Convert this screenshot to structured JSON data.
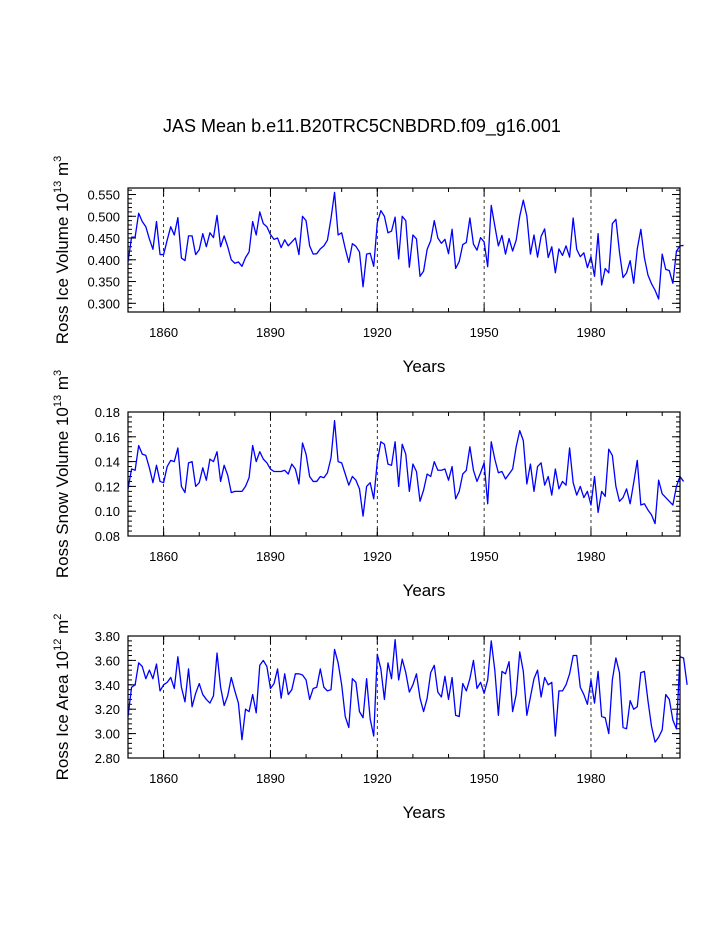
{
  "title": "JAS Mean b.e11.B20TRC5CNBDRD.f09_g16.001",
  "colors": {
    "series": "#0000ff",
    "axis": "#000000",
    "grid": "#000000"
  },
  "chart_data": [
    {
      "type": "line",
      "ylabel": {
        "text": "Ross Ice Volume 10",
        "exp1": "13",
        "mid": " m",
        "exp2": "3"
      },
      "xlabel": "Years",
      "xlim": [
        1850,
        2005
      ],
      "ylim": [
        0.28,
        0.565
      ],
      "yticks": [
        0.3,
        0.35,
        0.4,
        0.45,
        0.5,
        0.55
      ],
      "ytick_labels": [
        "0.300",
        "0.350",
        "0.400",
        "0.450",
        "0.500",
        "0.550"
      ],
      "xticks": [
        1860,
        1890,
        1920,
        1950,
        1980
      ],
      "xtick_labels": [
        "1860",
        "1890",
        "1920",
        "1950",
        "1980"
      ],
      "x_start": 1850,
      "values": [
        0.395,
        0.452,
        0.452,
        0.507,
        0.488,
        0.476,
        0.448,
        0.424,
        0.488,
        0.412,
        0.412,
        0.445,
        0.476,
        0.457,
        0.497,
        0.404,
        0.398,
        0.455,
        0.455,
        0.412,
        0.423,
        0.46,
        0.43,
        0.462,
        0.451,
        0.502,
        0.43,
        0.455,
        0.43,
        0.4,
        0.392,
        0.395,
        0.385,
        0.405,
        0.418,
        0.488,
        0.457,
        0.51,
        0.483,
        0.476,
        0.458,
        0.447,
        0.45,
        0.428,
        0.446,
        0.432,
        0.441,
        0.45,
        0.412,
        0.5,
        0.49,
        0.432,
        0.413,
        0.414,
        0.425,
        0.432,
        0.445,
        0.495,
        0.555,
        0.457,
        0.462,
        0.426,
        0.394,
        0.437,
        0.431,
        0.418,
        0.338,
        0.413,
        0.415,
        0.385,
        0.485,
        0.513,
        0.5,
        0.462,
        0.466,
        0.498,
        0.402,
        0.5,
        0.49,
        0.383,
        0.457,
        0.448,
        0.362,
        0.374,
        0.424,
        0.444,
        0.49,
        0.45,
        0.438,
        0.447,
        0.414,
        0.47,
        0.38,
        0.396,
        0.435,
        0.44,
        0.496,
        0.436,
        0.422,
        0.451,
        0.441,
        0.384,
        0.525,
        0.478,
        0.432,
        0.456,
        0.413,
        0.449,
        0.42,
        0.445,
        0.5,
        0.537,
        0.5,
        0.413,
        0.457,
        0.406,
        0.454,
        0.471,
        0.405,
        0.43,
        0.37,
        0.425,
        0.41,
        0.432,
        0.406,
        0.496,
        0.424,
        0.407,
        0.416,
        0.382,
        0.407,
        0.362,
        0.46,
        0.342,
        0.38,
        0.37,
        0.483,
        0.493,
        0.418,
        0.359,
        0.37,
        0.398,
        0.346,
        0.425,
        0.47,
        0.405,
        0.365,
        0.345,
        0.33,
        0.31,
        0.413,
        0.378,
        0.375,
        0.346,
        0.42,
        0.432,
        0.433
      ]
    },
    {
      "type": "line",
      "ylabel": {
        "text": "Ross Snow Volume 10",
        "exp1": "13",
        "mid": " m",
        "exp2": "3"
      },
      "xlabel": "Years",
      "xlim": [
        1850,
        2005
      ],
      "ylim": [
        0.08,
        0.18
      ],
      "yticks": [
        0.08,
        0.1,
        0.12,
        0.14,
        0.16,
        0.18
      ],
      "ytick_labels": [
        "0.08",
        "0.10",
        "0.12",
        "0.14",
        "0.16",
        "0.18"
      ],
      "xticks": [
        1860,
        1890,
        1920,
        1950,
        1980
      ],
      "xtick_labels": [
        "1860",
        "1890",
        "1920",
        "1950",
        "1980"
      ],
      "x_start": 1850,
      "values": [
        0.118,
        0.134,
        0.133,
        0.153,
        0.146,
        0.145,
        0.135,
        0.123,
        0.137,
        0.124,
        0.123,
        0.136,
        0.141,
        0.14,
        0.151,
        0.12,
        0.115,
        0.139,
        0.14,
        0.12,
        0.123,
        0.135,
        0.125,
        0.142,
        0.14,
        0.148,
        0.124,
        0.137,
        0.129,
        0.115,
        0.116,
        0.116,
        0.116,
        0.12,
        0.127,
        0.153,
        0.14,
        0.148,
        0.142,
        0.139,
        0.134,
        0.132,
        0.132,
        0.132,
        0.133,
        0.13,
        0.138,
        0.134,
        0.122,
        0.155,
        0.146,
        0.128,
        0.124,
        0.124,
        0.128,
        0.127,
        0.131,
        0.143,
        0.173,
        0.14,
        0.139,
        0.13,
        0.121,
        0.128,
        0.125,
        0.118,
        0.096,
        0.12,
        0.123,
        0.11,
        0.14,
        0.156,
        0.154,
        0.138,
        0.137,
        0.156,
        0.12,
        0.154,
        0.146,
        0.116,
        0.138,
        0.132,
        0.108,
        0.117,
        0.13,
        0.128,
        0.14,
        0.133,
        0.133,
        0.134,
        0.125,
        0.136,
        0.11,
        0.116,
        0.13,
        0.133,
        0.152,
        0.133,
        0.124,
        0.131,
        0.139,
        0.106,
        0.156,
        0.142,
        0.131,
        0.132,
        0.126,
        0.13,
        0.134,
        0.152,
        0.165,
        0.157,
        0.122,
        0.138,
        0.116,
        0.136,
        0.139,
        0.121,
        0.128,
        0.113,
        0.134,
        0.118,
        0.124,
        0.121,
        0.151,
        0.123,
        0.113,
        0.12,
        0.111,
        0.116,
        0.105,
        0.128,
        0.099,
        0.116,
        0.112,
        0.15,
        0.145,
        0.12,
        0.108,
        0.111,
        0.118,
        0.106,
        0.123,
        0.141,
        0.105,
        0.106,
        0.101,
        0.097,
        0.09,
        0.125,
        0.114,
        0.111,
        0.108,
        0.105,
        0.12,
        0.128,
        0.124
      ]
    },
    {
      "type": "line",
      "ylabel": {
        "text": "Ross Ice Area 10",
        "exp1": "12",
        "mid": " m",
        "exp2": "2"
      },
      "xlabel": "Years",
      "xlim": [
        1850,
        2005
      ],
      "ylim": [
        2.8,
        3.8
      ],
      "yticks": [
        2.8,
        3.0,
        3.2,
        3.4,
        3.6,
        3.8
      ],
      "ytick_labels": [
        "2.80",
        "3.00",
        "3.20",
        "3.40",
        "3.60",
        "3.80"
      ],
      "xticks": [
        1860,
        1890,
        1920,
        1950,
        1980
      ],
      "xtick_labels": [
        "1860",
        "1890",
        "1920",
        "1950",
        "1980"
      ],
      "x_start": 1850,
      "values": [
        3.14,
        3.38,
        3.4,
        3.58,
        3.55,
        3.45,
        3.52,
        3.45,
        3.57,
        3.35,
        3.4,
        3.42,
        3.46,
        3.37,
        3.63,
        3.38,
        3.26,
        3.53,
        3.22,
        3.33,
        3.41,
        3.32,
        3.28,
        3.25,
        3.31,
        3.66,
        3.38,
        3.23,
        3.31,
        3.46,
        3.35,
        3.25,
        2.95,
        3.2,
        3.18,
        3.32,
        3.17,
        3.56,
        3.6,
        3.55,
        3.37,
        3.41,
        3.53,
        3.29,
        3.49,
        3.32,
        3.36,
        3.49,
        3.49,
        3.48,
        3.44,
        3.28,
        3.37,
        3.38,
        3.53,
        3.38,
        3.35,
        3.36,
        3.69,
        3.58,
        3.4,
        3.14,
        3.05,
        3.45,
        3.42,
        3.18,
        3.13,
        3.45,
        3.12,
        2.98,
        3.65,
        3.53,
        3.28,
        3.58,
        3.45,
        3.77,
        3.44,
        3.61,
        3.5,
        3.34,
        3.4,
        3.49,
        3.29,
        3.18,
        3.29,
        3.5,
        3.56,
        3.34,
        3.3,
        3.47,
        3.28,
        3.46,
        3.15,
        3.14,
        3.41,
        3.35,
        3.45,
        3.6,
        3.37,
        3.42,
        3.33,
        3.44,
        3.76,
        3.52,
        3.15,
        3.51,
        3.49,
        3.59,
        3.18,
        3.32,
        3.67,
        3.51,
        3.15,
        3.3,
        3.45,
        3.52,
        3.3,
        3.46,
        3.4,
        3.42,
        2.98,
        3.35,
        3.35,
        3.4,
        3.49,
        3.64,
        3.64,
        3.38,
        3.32,
        3.24,
        3.44,
        3.25,
        3.51,
        3.14,
        3.13,
        3.0,
        3.44,
        3.62,
        3.5,
        3.05,
        3.04,
        3.27,
        3.2,
        3.22,
        3.5,
        3.51,
        3.27,
        3.06,
        2.93,
        2.97,
        3.03,
        3.32,
        3.28,
        3.11,
        3.04,
        3.63,
        3.62,
        3.4
      ]
    }
  ]
}
